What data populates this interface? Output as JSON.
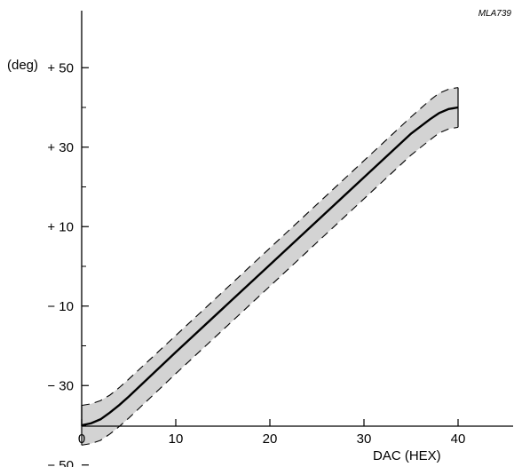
{
  "figure_ref": "MLA739",
  "chart_data": {
    "type": "line",
    "xlabel": "DAC (HEX)",
    "ylabel": "(deg)",
    "xlim": [
      0,
      45
    ],
    "ylim": [
      -50,
      55
    ],
    "x_ticks": [
      0,
      10,
      20,
      30,
      40
    ],
    "x_tick_labels": [
      "0",
      "10",
      "20",
      "30",
      "40"
    ],
    "y_ticks": [
      50,
      30,
      10,
      -10,
      -30,
      -50
    ],
    "y_tick_labels": [
      "+ 50",
      "+ 30",
      "+ 10",
      "− 10",
      "− 30",
      "− 50"
    ],
    "y_minor_ticks": [
      40,
      20,
      0,
      -20,
      -40
    ],
    "grid": false,
    "series": [
      {
        "role": "typical",
        "style": "solid",
        "x": [
          0,
          1,
          2,
          3,
          4,
          5,
          10,
          15,
          20,
          25,
          30,
          35,
          37,
          38,
          39,
          40
        ],
        "y": [
          -40,
          -39.5,
          -38.5,
          -36.8,
          -34.9,
          -32.8,
          -21.6,
          -10.6,
          0.4,
          11.4,
          22.4,
          33.4,
          37,
          38.6,
          39.6,
          40
        ]
      },
      {
        "role": "upper",
        "style": "dashed",
        "x": [
          0,
          1,
          2,
          3,
          4,
          5,
          10,
          15,
          20,
          25,
          30,
          35,
          37,
          38,
          39,
          40
        ],
        "y": [
          -35,
          -34.6,
          -33.8,
          -32.4,
          -30.5,
          -28.4,
          -17.4,
          -6.4,
          4.6,
          15.6,
          26.6,
          37.6,
          41.8,
          43.6,
          44.6,
          45
        ]
      },
      {
        "role": "lower",
        "style": "dashed",
        "x": [
          0,
          1,
          2,
          3,
          4,
          5,
          10,
          15,
          20,
          25,
          30,
          35,
          37,
          38,
          39,
          40
        ],
        "y": [
          -45,
          -44.6,
          -43.8,
          -42.2,
          -40.3,
          -38.2,
          -27,
          -16,
          -5,
          6,
          17,
          28,
          31.8,
          33.6,
          34.6,
          35
        ]
      }
    ],
    "band_color": "#d3d3d3",
    "line_color": "#000000"
  }
}
